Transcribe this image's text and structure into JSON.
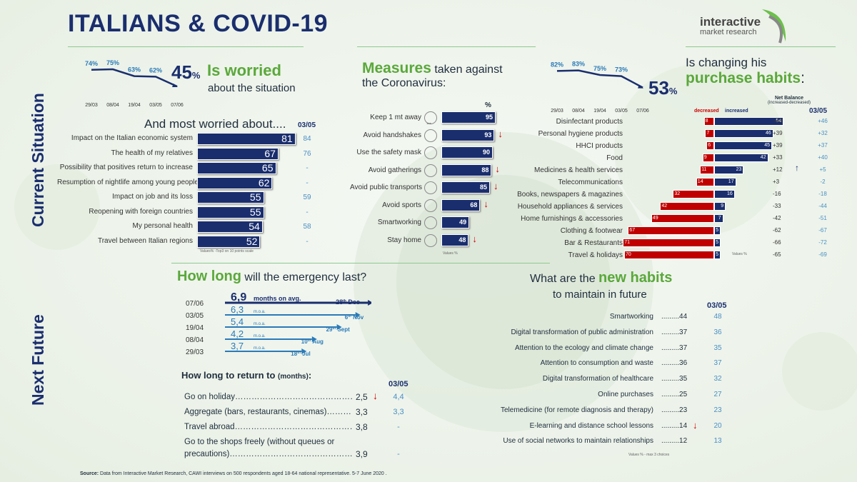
{
  "title": "ITALIANS & COVID-19",
  "logo": {
    "line1": "interactive",
    "line2": "market research"
  },
  "side_labels": {
    "current": "Current Situation",
    "future": "Next Future"
  },
  "worried": {
    "dates": [
      "29/03",
      "08/04",
      "19/04",
      "03/05",
      "07/06"
    ],
    "values_text": [
      "74%",
      "75%",
      "63%",
      "62%"
    ],
    "current": "45",
    "pct": "%",
    "head": "Is worried",
    "sub": "about the situation"
  },
  "most_worried": {
    "title": "And most worried about....",
    "compare_label": "03/05",
    "note": "Values% -Top3 on 10 points scale",
    "items": [
      {
        "label": "Impact on the Italian economic system",
        "value": "81",
        "prev": "84"
      },
      {
        "label": "The health of my relatives",
        "value": "67",
        "prev": "76"
      },
      {
        "label": "Possibility that positives return to increase",
        "value": "65",
        "prev": "-"
      },
      {
        "label": "Resumption of nightlife among young people",
        "value": "62",
        "prev": "-"
      },
      {
        "label": "Impact on job and its loss",
        "value": "55",
        "prev": "59"
      },
      {
        "label": "Reopening  with foreign countries",
        "value": "55",
        "prev": "-"
      },
      {
        "label": "My personal health",
        "value": "54",
        "prev": "58"
      },
      {
        "label": "Travel between Italian regions",
        "value": "52",
        "prev": "-"
      }
    ]
  },
  "measures": {
    "head": "Measures",
    "head_rest": " taken against",
    "sub": "the Coronavirus:",
    "pct_label": "%",
    "note": "Values %",
    "items": [
      {
        "label": "Keep 1 mt away",
        "value": "95",
        "icon_text": "1mt"
      },
      {
        "label": "Avoid handshakes",
        "value": "93"
      },
      {
        "label": "Use the safety mask",
        "value": "90"
      },
      {
        "label": "Avoid gatherings",
        "value": "88"
      },
      {
        "label": "Avoid public transports",
        "value": "85"
      },
      {
        "label": "Avoid sports",
        "value": "68"
      },
      {
        "label": "Smartworking",
        "value": "49"
      },
      {
        "label": "Stay home",
        "value": "48"
      }
    ]
  },
  "purchase": {
    "dates": [
      "29/03",
      "08/04",
      "19/04",
      "03/05",
      "07/06"
    ],
    "values_text": [
      "82%",
      "83%",
      "75%",
      "73%"
    ],
    "current": "53",
    "pct": "%",
    "head1": "Is changing his",
    "head2": "purchase habits",
    "decreased": "decreased",
    "increased": "increased",
    "net": "Net Balance",
    "net_sub": "(increased-decreased)",
    "compare_label": "03/05",
    "note": "Values %",
    "items": [
      {
        "label": "Disinfectant products",
        "dec": "8",
        "inc": "54",
        "net": "+46",
        "prev": "+46"
      },
      {
        "label": "Personal hygiene products",
        "dec": "7",
        "inc": "46",
        "net": "+39",
        "prev": "+32"
      },
      {
        "label": "HHCI products",
        "dec": "6",
        "inc": "45",
        "net": "+39",
        "prev": "+37"
      },
      {
        "label": "Food",
        "dec": "9",
        "inc": "42",
        "net": "+33",
        "prev": "+40"
      },
      {
        "label": "Medicines & health services",
        "dec": "11",
        "inc": "23",
        "net": "+12",
        "prev": "+5"
      },
      {
        "label": "Telecommunications",
        "dec": "14",
        "inc": "17",
        "net": "+3",
        "prev": "-2"
      },
      {
        "label": "Books, newspapers & magazines",
        "dec": "32",
        "inc": "16",
        "net": "-16",
        "prev": "-18"
      },
      {
        "label": "Household appliances & services",
        "dec": "42",
        "inc": "9",
        "net": "-33",
        "prev": "-44"
      },
      {
        "label": "Home furnishings & accessories",
        "dec": "49",
        "inc": "7",
        "net": "-42",
        "prev": "-51"
      },
      {
        "label": "Clothing & footwear",
        "dec": "67",
        "inc": "5",
        "net": "-62",
        "prev": "-67"
      },
      {
        "label": "Bar & Restaurants",
        "dec": "71",
        "inc": "5",
        "net": "-66",
        "prev": "-72"
      },
      {
        "label": "Travel & holidays",
        "dec": "70",
        "inc": "5",
        "net": "-65",
        "prev": "-69"
      }
    ]
  },
  "howlong": {
    "head": "How long",
    "head_rest": " will the emergency last?",
    "rows": [
      {
        "date": "07/06",
        "value": "6,9",
        "suffix": "months on avg.",
        "end": "28",
        "end_sup": "th",
        "end_month": "Dec"
      },
      {
        "date": "03/05",
        "value": "6,3",
        "suffix": "m.o.a.",
        "end": "6",
        "end_sup": "th",
        "end_month": "Nov"
      },
      {
        "date": "19/04",
        "value": "5,4",
        "suffix": "m.o.a.",
        "end": "29",
        "end_sup": "th",
        "end_month": "Sept"
      },
      {
        "date": "08/04",
        "value": "4,2",
        "suffix": "m.o.a.",
        "end": "10",
        "end_sup": "th",
        "end_month": "Aug"
      },
      {
        "date": "29/03",
        "value": "3,7",
        "suffix": "m.o.a.",
        "end": "18",
        "end_sup": "th",
        "end_month": "Jul"
      }
    ]
  },
  "return": {
    "title": "How long to return to",
    "title_unit": "(months)",
    "title_colon": ":",
    "compare_label": "03/05",
    "items": [
      {
        "label": "Go on holiday……………………………………………",
        "value": "2,5",
        "prev": "4,4"
      },
      {
        "label": "Aggregate (bars, restaurants, cinemas)………",
        "value": "3,3",
        "prev": "3,3"
      },
      {
        "label": "Travel abroad…………………………………………",
        "value": "3,8",
        "prev": "-"
      },
      {
        "label": "Go to the shops freely (without queues or precautions)…………………………………………",
        "value": "3,9",
        "prev": "-"
      }
    ]
  },
  "habits": {
    "head1": "What are the ",
    "head_green": "new habits",
    "head2": "to maintain in future",
    "compare_label": "03/05",
    "note": "Values % - max 3 choices",
    "items": [
      {
        "label": "Smartworking",
        "value": ".........44",
        "prev": "48"
      },
      {
        "label": "Digital transformation of public administration",
        "value": ".........37",
        "prev": "36"
      },
      {
        "label": "Attention to the ecology and climate change",
        "value": ".........37",
        "prev": "35"
      },
      {
        "label": "Attention to consumption and waste",
        "value": ".........36",
        "prev": "37"
      },
      {
        "label": "Digital transformation of healthcare",
        "value": ".........35",
        "prev": "32"
      },
      {
        "label": "Online purchases",
        "value": ".........25",
        "prev": "27"
      },
      {
        "label": "Telemedicine (for remote diagnosis and therapy)",
        "value": ".........23",
        "prev": "23"
      },
      {
        "label": "E-learning and distance school lessons",
        "value": ".........14",
        "prev": "20"
      },
      {
        "label": "Use of social networks to maintain relationships",
        "value": ".........12",
        "prev": "13"
      }
    ]
  },
  "source": {
    "label": "Source:",
    "text": " Data from Interactive Market Research, CAWI interviews on 500 respondents aged 18-64 national representative. 5-7 June 2020 ."
  },
  "colors": {
    "navy": "#1a2e6e",
    "green": "#5aa83a",
    "red": "#c00000",
    "blue": "#4a8fc4"
  },
  "chart_data": [
    {
      "type": "line",
      "title": "Is worried about the situation",
      "categories": [
        "29/03",
        "08/04",
        "19/04",
        "03/05",
        "07/06"
      ],
      "values": [
        74,
        75,
        63,
        62,
        45
      ],
      "unit": "%"
    },
    {
      "type": "bar",
      "title": "And most worried about....",
      "categories": [
        "Impact on the Italian economic system",
        "The health of my relatives",
        "Possibility that positives return to increase",
        "Resumption of nightlife among young people",
        "Impact on job and its loss",
        "Reopening  with foreign countries",
        "My personal health",
        "Travel between Italian regions"
      ],
      "values": [
        81,
        67,
        65,
        62,
        55,
        55,
        54,
        52
      ],
      "compare_03_05": [
        84,
        76,
        null,
        null,
        59,
        null,
        58,
        null
      ],
      "xlim": [
        0,
        100
      ]
    },
    {
      "type": "bar",
      "title": "Measures taken against the Coronavirus",
      "categories": [
        "Keep 1 mt away",
        "Avoid handshakes",
        "Use the safety mask",
        "Avoid gatherings",
        "Avoid public transports",
        "Avoid sports",
        "Smartworking",
        "Stay home"
      ],
      "values": [
        95,
        93,
        90,
        88,
        85,
        68,
        49,
        48
      ],
      "xlim": [
        0,
        100
      ]
    },
    {
      "type": "line",
      "title": "Is changing his purchase habits",
      "categories": [
        "29/03",
        "08/04",
        "19/04",
        "03/05",
        "07/06"
      ],
      "values": [
        82,
        83,
        75,
        73,
        53
      ],
      "unit": "%"
    },
    {
      "type": "bar",
      "title": "Purchase habits",
      "categories": [
        "Disinfectant products",
        "Personal hygiene products",
        "HHCI products",
        "Food",
        "Medicines & health services",
        "Telecommunications",
        "Books, newspapers & magazines",
        "Household appliances & services",
        "Home furnishings & accessories",
        "Clothing & footwear",
        "Bar & Restaurants",
        "Travel & holidays"
      ],
      "series": [
        {
          "name": "decreased",
          "values": [
            8,
            7,
            6,
            9,
            11,
            14,
            32,
            42,
            49,
            67,
            71,
            70
          ]
        },
        {
          "name": "increased",
          "values": [
            54,
            46,
            45,
            42,
            23,
            17,
            16,
            9,
            7,
            5,
            5,
            5
          ]
        }
      ]
    },
    {
      "type": "bar",
      "title": "How long will the emergency last?",
      "categories": [
        "07/06",
        "03/05",
        "19/04",
        "08/04",
        "29/03"
      ],
      "values": [
        6.9,
        6.3,
        5.4,
        4.2,
        3.7
      ],
      "unit": "months"
    }
  ]
}
